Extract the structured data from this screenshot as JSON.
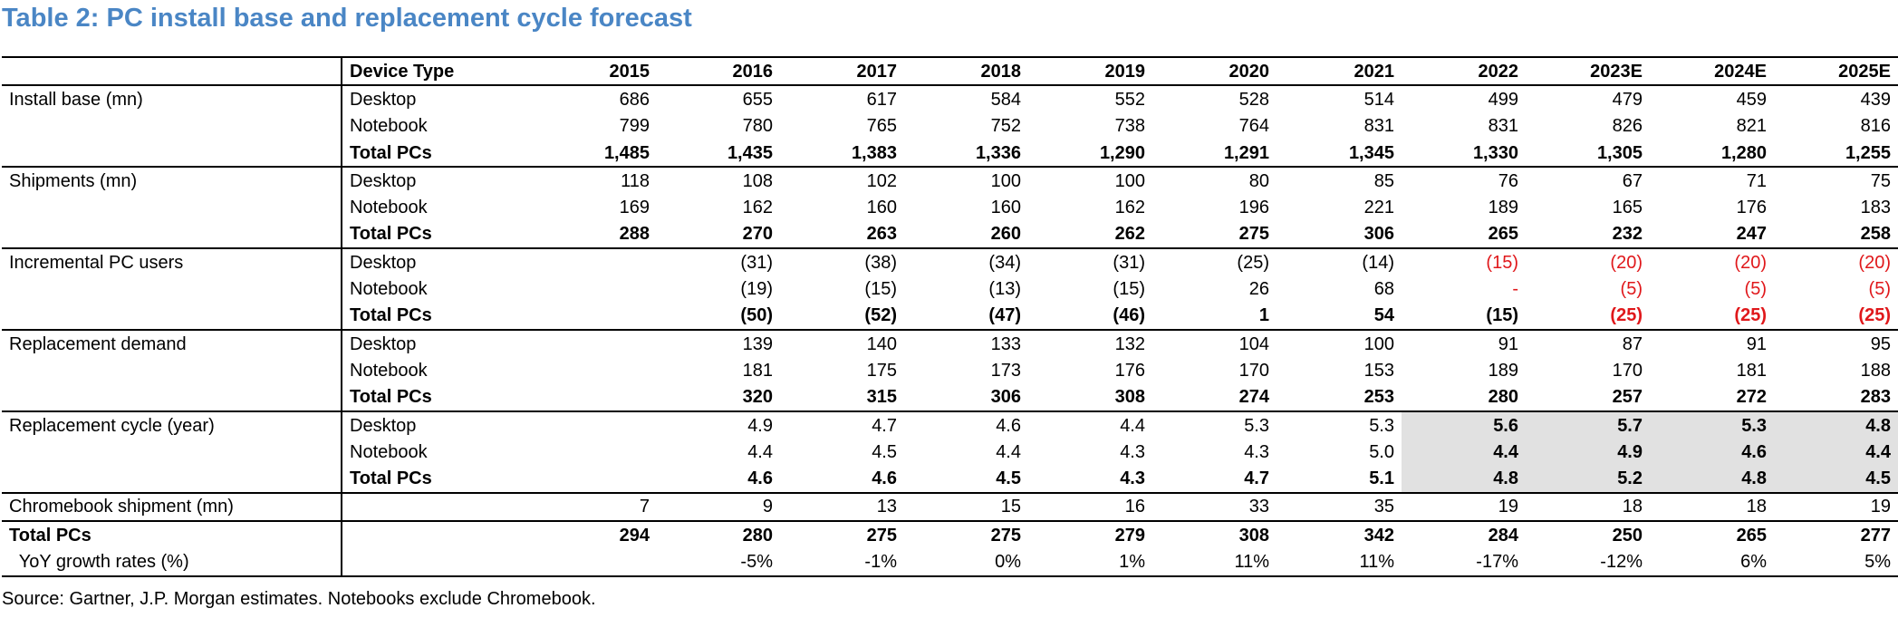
{
  "title": "Table 2: PC install base and replacement cycle forecast",
  "source": "Source: Gartner, J.P. Morgan estimates. Notebooks exclude Chromebook.",
  "header": {
    "label": "",
    "device": "Device Type",
    "years": [
      "2015",
      "2016",
      "2017",
      "2018",
      "2019",
      "2020",
      "2021",
      "2022",
      "2023E",
      "2024E",
      "2025E"
    ]
  },
  "rows": [
    {
      "label": "Install base (mn)",
      "device": "Desktop",
      "values": [
        "686",
        "655",
        "617",
        "584",
        "552",
        "528",
        "514",
        "499",
        "479",
        "459",
        "439"
      ]
    },
    {
      "label": "",
      "device": "Notebook",
      "values": [
        "799",
        "780",
        "765",
        "752",
        "738",
        "764",
        "831",
        "831",
        "826",
        "821",
        "816"
      ]
    },
    {
      "label": "",
      "device": "Total PCs",
      "values": [
        "1,485",
        "1,435",
        "1,383",
        "1,336",
        "1,290",
        "1,291",
        "1,345",
        "1,330",
        "1,305",
        "1,280",
        "1,255"
      ]
    },
    {
      "label": "Shipments (mn)",
      "device": "Desktop",
      "values": [
        "118",
        "108",
        "102",
        "100",
        "100",
        "80",
        "85",
        "76",
        "67",
        "71",
        "75"
      ]
    },
    {
      "label": "",
      "device": "Notebook",
      "values": [
        "169",
        "162",
        "160",
        "160",
        "162",
        "196",
        "221",
        "189",
        "165",
        "176",
        "183"
      ]
    },
    {
      "label": "",
      "device": "Total PCs",
      "values": [
        "288",
        "270",
        "263",
        "260",
        "262",
        "275",
        "306",
        "265",
        "232",
        "247",
        "258"
      ]
    },
    {
      "label": "Incremental PC users",
      "device": "Desktop",
      "values": [
        "",
        "(31)",
        "(38)",
        "(34)",
        "(31)",
        "(25)",
        "(14)",
        "(15)",
        "(20)",
        "(20)",
        "(20)"
      ]
    },
    {
      "label": "",
      "device": "Notebook",
      "values": [
        "",
        "(19)",
        "(15)",
        "(13)",
        "(15)",
        "26",
        "68",
        "-",
        "(5)",
        "(5)",
        "(5)"
      ]
    },
    {
      "label": "",
      "device": "Total PCs",
      "values": [
        "",
        "(50)",
        "(52)",
        "(47)",
        "(46)",
        "1",
        "54",
        "(15)",
        "(25)",
        "(25)",
        "(25)"
      ]
    },
    {
      "label": "Replacement demand",
      "device": "Desktop",
      "values": [
        "",
        "139",
        "140",
        "133",
        "132",
        "104",
        "100",
        "91",
        "87",
        "91",
        "95"
      ]
    },
    {
      "label": "",
      "device": "Notebook",
      "values": [
        "",
        "181",
        "175",
        "173",
        "176",
        "170",
        "153",
        "189",
        "170",
        "181",
        "188"
      ]
    },
    {
      "label": "",
      "device": "Total PCs",
      "values": [
        "",
        "320",
        "315",
        "306",
        "308",
        "274",
        "253",
        "280",
        "257",
        "272",
        "283"
      ]
    },
    {
      "label": "Replacement cycle (year)",
      "device": "Desktop",
      "values": [
        "",
        "4.9",
        "4.7",
        "4.6",
        "4.4",
        "5.3",
        "5.3",
        "5.6",
        "5.7",
        "5.3",
        "4.8"
      ]
    },
    {
      "label": "",
      "device": "Notebook",
      "values": [
        "",
        "4.4",
        "4.5",
        "4.4",
        "4.3",
        "4.3",
        "5.0",
        "4.4",
        "4.9",
        "4.6",
        "4.4"
      ]
    },
    {
      "label": "",
      "device": "Total PCs",
      "values": [
        "",
        "4.6",
        "4.6",
        "4.5",
        "4.3",
        "4.7",
        "5.1",
        "4.8",
        "5.2",
        "4.8",
        "4.5"
      ]
    },
    {
      "label": "Chromebook shipment (mn)",
      "device": "",
      "values": [
        "7",
        "9",
        "13",
        "15",
        "16",
        "33",
        "35",
        "19",
        "18",
        "18",
        "19"
      ]
    },
    {
      "label": "Total PCs",
      "device": "",
      "values": [
        "294",
        "280",
        "275",
        "275",
        "279",
        "308",
        "342",
        "284",
        "250",
        "265",
        "277"
      ]
    },
    {
      "label": "  YoY growth rates (%)",
      "device": "",
      "values": [
        "",
        "-5%",
        "-1%",
        "0%",
        "1%",
        "11%",
        "11%",
        "-17%",
        "-12%",
        "6%",
        "5%"
      ]
    }
  ],
  "styles": {
    "title_color": "#4a86c5",
    "negative_color": "#e0181b",
    "shade_color": "#e1e1e1"
  }
}
